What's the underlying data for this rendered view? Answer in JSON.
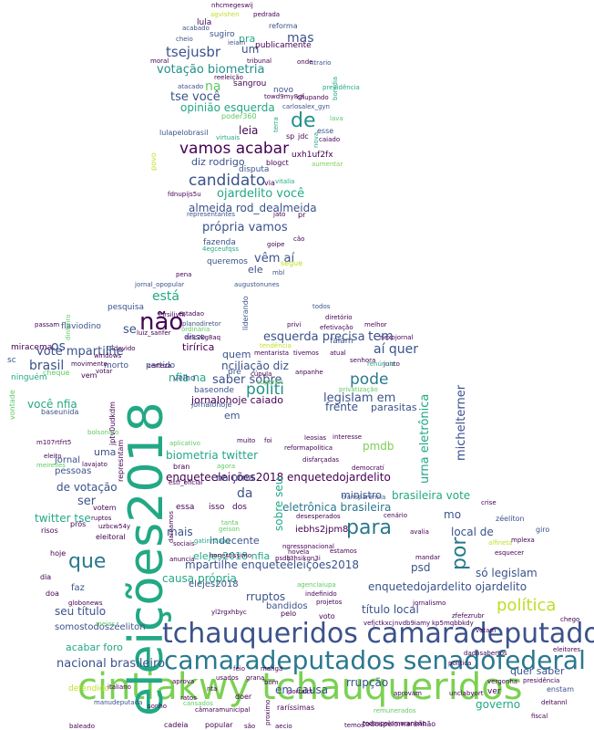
{
  "palette": {
    "c1": "#440154",
    "c2": "#3b528b",
    "c3": "#2a788e",
    "c4": "#21918c",
    "c5": "#22a884",
    "c6": "#5ec962",
    "c7": "#7ad151",
    "c8": "#bddf26",
    "c9": "#fde725"
  },
  "words": [
    {
      "text": "cintiakwy tchauqueridos"
    },
    {
      "text": "eleições2018"
    },
    {
      "text": "tchauqueridos camaradeputados"
    },
    {
      "text": "camaradeputados senadofederal"
    },
    {
      "text": "não"
    },
    {
      "text": "para"
    },
    {
      "text": "política"
    },
    {
      "text": "que"
    },
    {
      "text": "por"
    },
    {
      "text": "de"
    },
    {
      "text": "vamos acabar"
    },
    {
      "text": "candidato"
    },
    {
      "text": "tsejusbr"
    },
    {
      "text": "mas"
    },
    {
      "text": "votação biometria"
    },
    {
      "text": "tse você"
    },
    {
      "text": "na"
    },
    {
      "text": "opinião esquerda"
    },
    {
      "text": "leia"
    },
    {
      "text": "diz rodrigo"
    },
    {
      "text": "ojardelito você"
    },
    {
      "text": "almeida rod_dealmeida"
    },
    {
      "text": "própria vamos"
    },
    {
      "text": "vêm aí"
    },
    {
      "text": "está"
    },
    {
      "text": "políti"
    },
    {
      "text": "pode"
    },
    {
      "text": "tem"
    },
    {
      "text": "aí quer"
    },
    {
      "text": "brasil"
    },
    {
      "text": "vote mpartilhe"
    },
    {
      "text": "esquerda precisa"
    },
    {
      "text": "nciliação diz"
    },
    {
      "text": "tirírica"
    },
    {
      "text": "saber sobre"
    },
    {
      "text": "legislam em"
    },
    {
      "text": "nfia na"
    },
    {
      "text": "você nfia"
    },
    {
      "text": "jornalohoje caiado"
    },
    {
      "text": "biometria twitter"
    },
    {
      "text": "frente"
    },
    {
      "text": "parasitas"
    },
    {
      "text": "pmdb"
    },
    {
      "text": "enqueteeleições2018 enquetedojardelito"
    },
    {
      "text": "urna eletrônica"
    },
    {
      "text": "michelterner"
    },
    {
      "text": "eletrônica brasileira"
    },
    {
      "text": "brasileira vote"
    },
    {
      "text": "de votação"
    },
    {
      "text": "ser"
    },
    {
      "text": "twitter tse"
    },
    {
      "text": "da"
    },
    {
      "text": "na urna"
    },
    {
      "text": "mo"
    },
    {
      "text": "mais"
    },
    {
      "text": "local de"
    },
    {
      "text": "psd"
    },
    {
      "text": "mpartilhe enqueteeleições2018"
    },
    {
      "text": "causa própria"
    },
    {
      "text": "elejes2018 nfia"
    },
    {
      "text": "enquetedojardelito ojardelito"
    },
    {
      "text": "só legislam"
    },
    {
      "text": "seu título"
    },
    {
      "text": "título local"
    },
    {
      "text": "rruptos"
    },
    {
      "text": "somostodoszéeliton"
    },
    {
      "text": "acabar foro"
    },
    {
      "text": "nacional brasileiro"
    },
    {
      "text": "em causa"
    },
    {
      "text": "rrupção"
    },
    {
      "text": "quer saber"
    },
    {
      "text": "governo"
    },
    {
      "text": "sobre seu"
    },
    {
      "text": "pessoas"
    },
    {
      "text": "uma"
    },
    {
      "text": "jornal"
    },
    {
      "text": "os"
    },
    {
      "text": "se"
    },
    {
      "text": "um"
    },
    {
      "text": "pra"
    },
    {
      "text": "ele"
    },
    {
      "text": "quem"
    },
    {
      "text": "em"
    },
    {
      "text": "ministro"
    },
    {
      "text": "elejes2018"
    },
    {
      "text": "indecente"
    },
    {
      "text": "iebhs2jpm8"
    },
    {
      "text": "bandidos"
    },
    {
      "text": "defendido"
    },
    {
      "text": "faz"
    },
    {
      "text": "lula"
    },
    {
      "text": "reforma"
    },
    {
      "text": "sugiro"
    },
    {
      "text": "publicamente"
    },
    {
      "text": "sangrou"
    },
    {
      "text": "novo"
    },
    {
      "text": "fazenda"
    },
    {
      "text": "queremos"
    },
    {
      "text": "falam"
    },
    {
      "text": "baseonde"
    },
    {
      "text": "disso"
    },
    {
      "text": "pesquisa"
    },
    {
      "text": "flaviodino"
    },
    {
      "text": "miracema"
    },
    {
      "text": "velho"
    },
    {
      "text": "partido"
    },
    {
      "text": "morto"
    },
    {
      "text": "pré"
    },
    {
      "text": "ct"
    },
    {
      "text": "baseunida"
    },
    {
      "text": "jornalohoje"
    },
    {
      "text": "todospelomaranhão"
    },
    {
      "text": "nhcmegeswij"
    },
    {
      "text": "agvishen"
    },
    {
      "text": "pedrada"
    },
    {
      "text": "acabado"
    },
    {
      "text": "cheio"
    },
    {
      "text": "ieiam"
    },
    {
      "text": "moral"
    },
    {
      "text": "tribunal"
    },
    {
      "text": "ntrario"
    },
    {
      "text": "onde"
    },
    {
      "text": "bomdia"
    },
    {
      "text": "reeleição"
    },
    {
      "text": "previdência"
    },
    {
      "text": "atacado"
    },
    {
      "text": "towd9my8gf"
    },
    {
      "text": "chupando"
    },
    {
      "text": "carlosalex_gyn"
    },
    {
      "text": "poder360"
    },
    {
      "text": "lulapelobrasil"
    },
    {
      "text": "virtuais"
    },
    {
      "text": "povo"
    },
    {
      "text": "sp"
    },
    {
      "text": "jdc"
    },
    {
      "text": "esse"
    },
    {
      "text": "lava"
    },
    {
      "text": "caiado"
    },
    {
      "text": "terra"
    },
    {
      "text": "nova"
    },
    {
      "text": "uxh1uf2fx"
    },
    {
      "text": "blogct"
    },
    {
      "text": "disputa"
    },
    {
      "text": "aumentar"
    },
    {
      "text": "via"
    },
    {
      "text": "vitalia"
    },
    {
      "text": "fdnupijs5u"
    },
    {
      "text": "representantes"
    },
    {
      "text": "jato"
    },
    {
      "text": "pr"
    },
    {
      "text": "segue"
    },
    {
      "text": "4egceufqss"
    },
    {
      "text": "goipe"
    },
    {
      "text": "cão"
    },
    {
      "text": "mbl"
    },
    {
      "text": "augustonunes"
    },
    {
      "text": "pena"
    },
    {
      "text": "jornal_opopular"
    },
    {
      "text": "todos"
    },
    {
      "text": "diretório"
    },
    {
      "text": "efetivação"
    },
    {
      "text": "melhor"
    },
    {
      "text": "eirsiljvfk"
    },
    {
      "text": "planodiretor"
    },
    {
      "text": "luiz_sanfer"
    },
    {
      "text": "privi"
    },
    {
      "text": "liderando"
    },
    {
      "text": "nexojornal"
    },
    {
      "text": "tendência"
    },
    {
      "text": "mentarista"
    },
    {
      "text": "tivemos"
    },
    {
      "text": "atual"
    },
    {
      "text": "senhora"
    },
    {
      "text": "junto"
    },
    {
      "text": "renúncia"
    },
    {
      "text": "cúpula"
    },
    {
      "text": "superior"
    },
    {
      "text": "anpanhe"
    },
    {
      "text": "privatização"
    },
    {
      "text": "leosias"
    },
    {
      "text": "interesse"
    },
    {
      "text": "reformapolitica"
    },
    {
      "text": "disfarçadas"
    },
    {
      "text": "democratí"
    },
    {
      "text": "transparência"
    },
    {
      "text": "desesperados"
    },
    {
      "text": "cenário"
    },
    {
      "text": "avalia"
    },
    {
      "text": "mandar"
    },
    {
      "text": "alfineta"
    },
    {
      "text": "esquecer"
    },
    {
      "text": "mplexa"
    },
    {
      "text": "giro"
    },
    {
      "text": "zéeliton"
    },
    {
      "text": "crise"
    },
    {
      "text": "chego"
    },
    {
      "text": "eleitores"
    },
    {
      "text": "presidência"
    },
    {
      "text": "fiscal"
    },
    {
      "text": "deltannl"
    },
    {
      "text": "enstam"
    },
    {
      "text": "ver"
    },
    {
      "text": "vergonha"
    },
    {
      "text": "votam"
    },
    {
      "text": "dadosabertos"
    },
    {
      "text": "política"
    },
    {
      "text": "unclabyort"
    },
    {
      "text": "aprovam"
    },
    {
      "text": "remunerados"
    },
    {
      "text": "todospelomaranhão"
    },
    {
      "text": "temos"
    },
    {
      "text": "aecio"
    },
    {
      "text": "raríssimas"
    },
    {
      "text": "proximo"
    },
    {
      "text": "sonho"
    },
    {
      "text": "cansados"
    },
    {
      "text": "baleado"
    },
    {
      "text": "popular"
    },
    {
      "text": "cadeia"
    },
    {
      "text": "manudeputada"
    },
    {
      "text": "câmaramunicipal"
    },
    {
      "text": "ratos"
    },
    {
      "text": "doer"
    },
    {
      "text": "portalct"
    },
    {
      "text": "usados"
    },
    {
      "text": "grana"
    },
    {
      "text": "aprova"
    },
    {
      "text": "feio"
    },
    {
      "text": "manga"
    },
    {
      "text": "pelo"
    },
    {
      "text": "voto"
    },
    {
      "text": "projetos"
    },
    {
      "text": "indefinido"
    },
    {
      "text": "agenciaiupa"
    },
    {
      "text": "nvdb9iamy"
    },
    {
      "text": "vefjctkxcj"
    },
    {
      "text": "kp5mqbbkdy"
    },
    {
      "text": "zfefezrubr"
    },
    {
      "text": "jornalismo"
    },
    {
      "text": "yl2rgxhbyc"
    },
    {
      "text": "ngressonacional"
    },
    {
      "text": "novela"
    },
    {
      "text": "estamos"
    },
    {
      "text": "psdb"
    },
    {
      "text": "j3hsikgn3i"
    },
    {
      "text": "honestíssimo"
    },
    {
      "text": "gatinhaaaa"
    },
    {
      "text": "anuncia"
    },
    {
      "text": "sociais"
    },
    {
      "text": "darnamos"
    },
    {
      "text": "geison"
    },
    {
      "text": "tanta"
    },
    {
      "text": "essa"
    },
    {
      "text": "isso"
    },
    {
      "text": "dos"
    },
    {
      "text": "estf_oficial"
    },
    {
      "text": "bran"
    },
    {
      "text": "agora"
    },
    {
      "text": "aplicativo"
    },
    {
      "text": "muito"
    },
    {
      "text": "foi"
    },
    {
      "text": "represntam"
    },
    {
      "text": "lavajato"
    },
    {
      "text": "jptv0udkdm"
    },
    {
      "text": "eleito"
    },
    {
      "text": "meirelles"
    },
    {
      "text": "m107rtfrt5"
    },
    {
      "text": "bolsonaro"
    },
    {
      "text": "vontade"
    },
    {
      "text": "cheque"
    },
    {
      "text": "ninguém"
    },
    {
      "text": "sc"
    },
    {
      "text": "vem"
    },
    {
      "text": "votar"
    },
    {
      "text": "windows"
    },
    {
      "text": "movimento"
    },
    {
      "text": "devido"
    },
    {
      "text": "certeza"
    },
    {
      "text": "ordinária"
    },
    {
      "text": "arlc2kg8aq"
    },
    {
      "text": "estadao"
    },
    {
      "text": "passam"
    },
    {
      "text": "dinheiro"
    },
    {
      "text": "uzbcw54y"
    },
    {
      "text": "ruptos"
    },
    {
      "text": "votem"
    },
    {
      "text": "risos"
    },
    {
      "text": "prós"
    },
    {
      "text": "eleitoral"
    },
    {
      "text": "hoje"
    },
    {
      "text": "dia"
    },
    {
      "text": "doa"
    },
    {
      "text": "globonews"
    },
    {
      "text": "italiano"
    },
    {
      "text": "meios"
    },
    {
      "text": "bom"
    },
    {
      "text": "são"
    },
    {
      "text": "nta"
    },
    {
      "text": "bem"
    }
  ]
}
